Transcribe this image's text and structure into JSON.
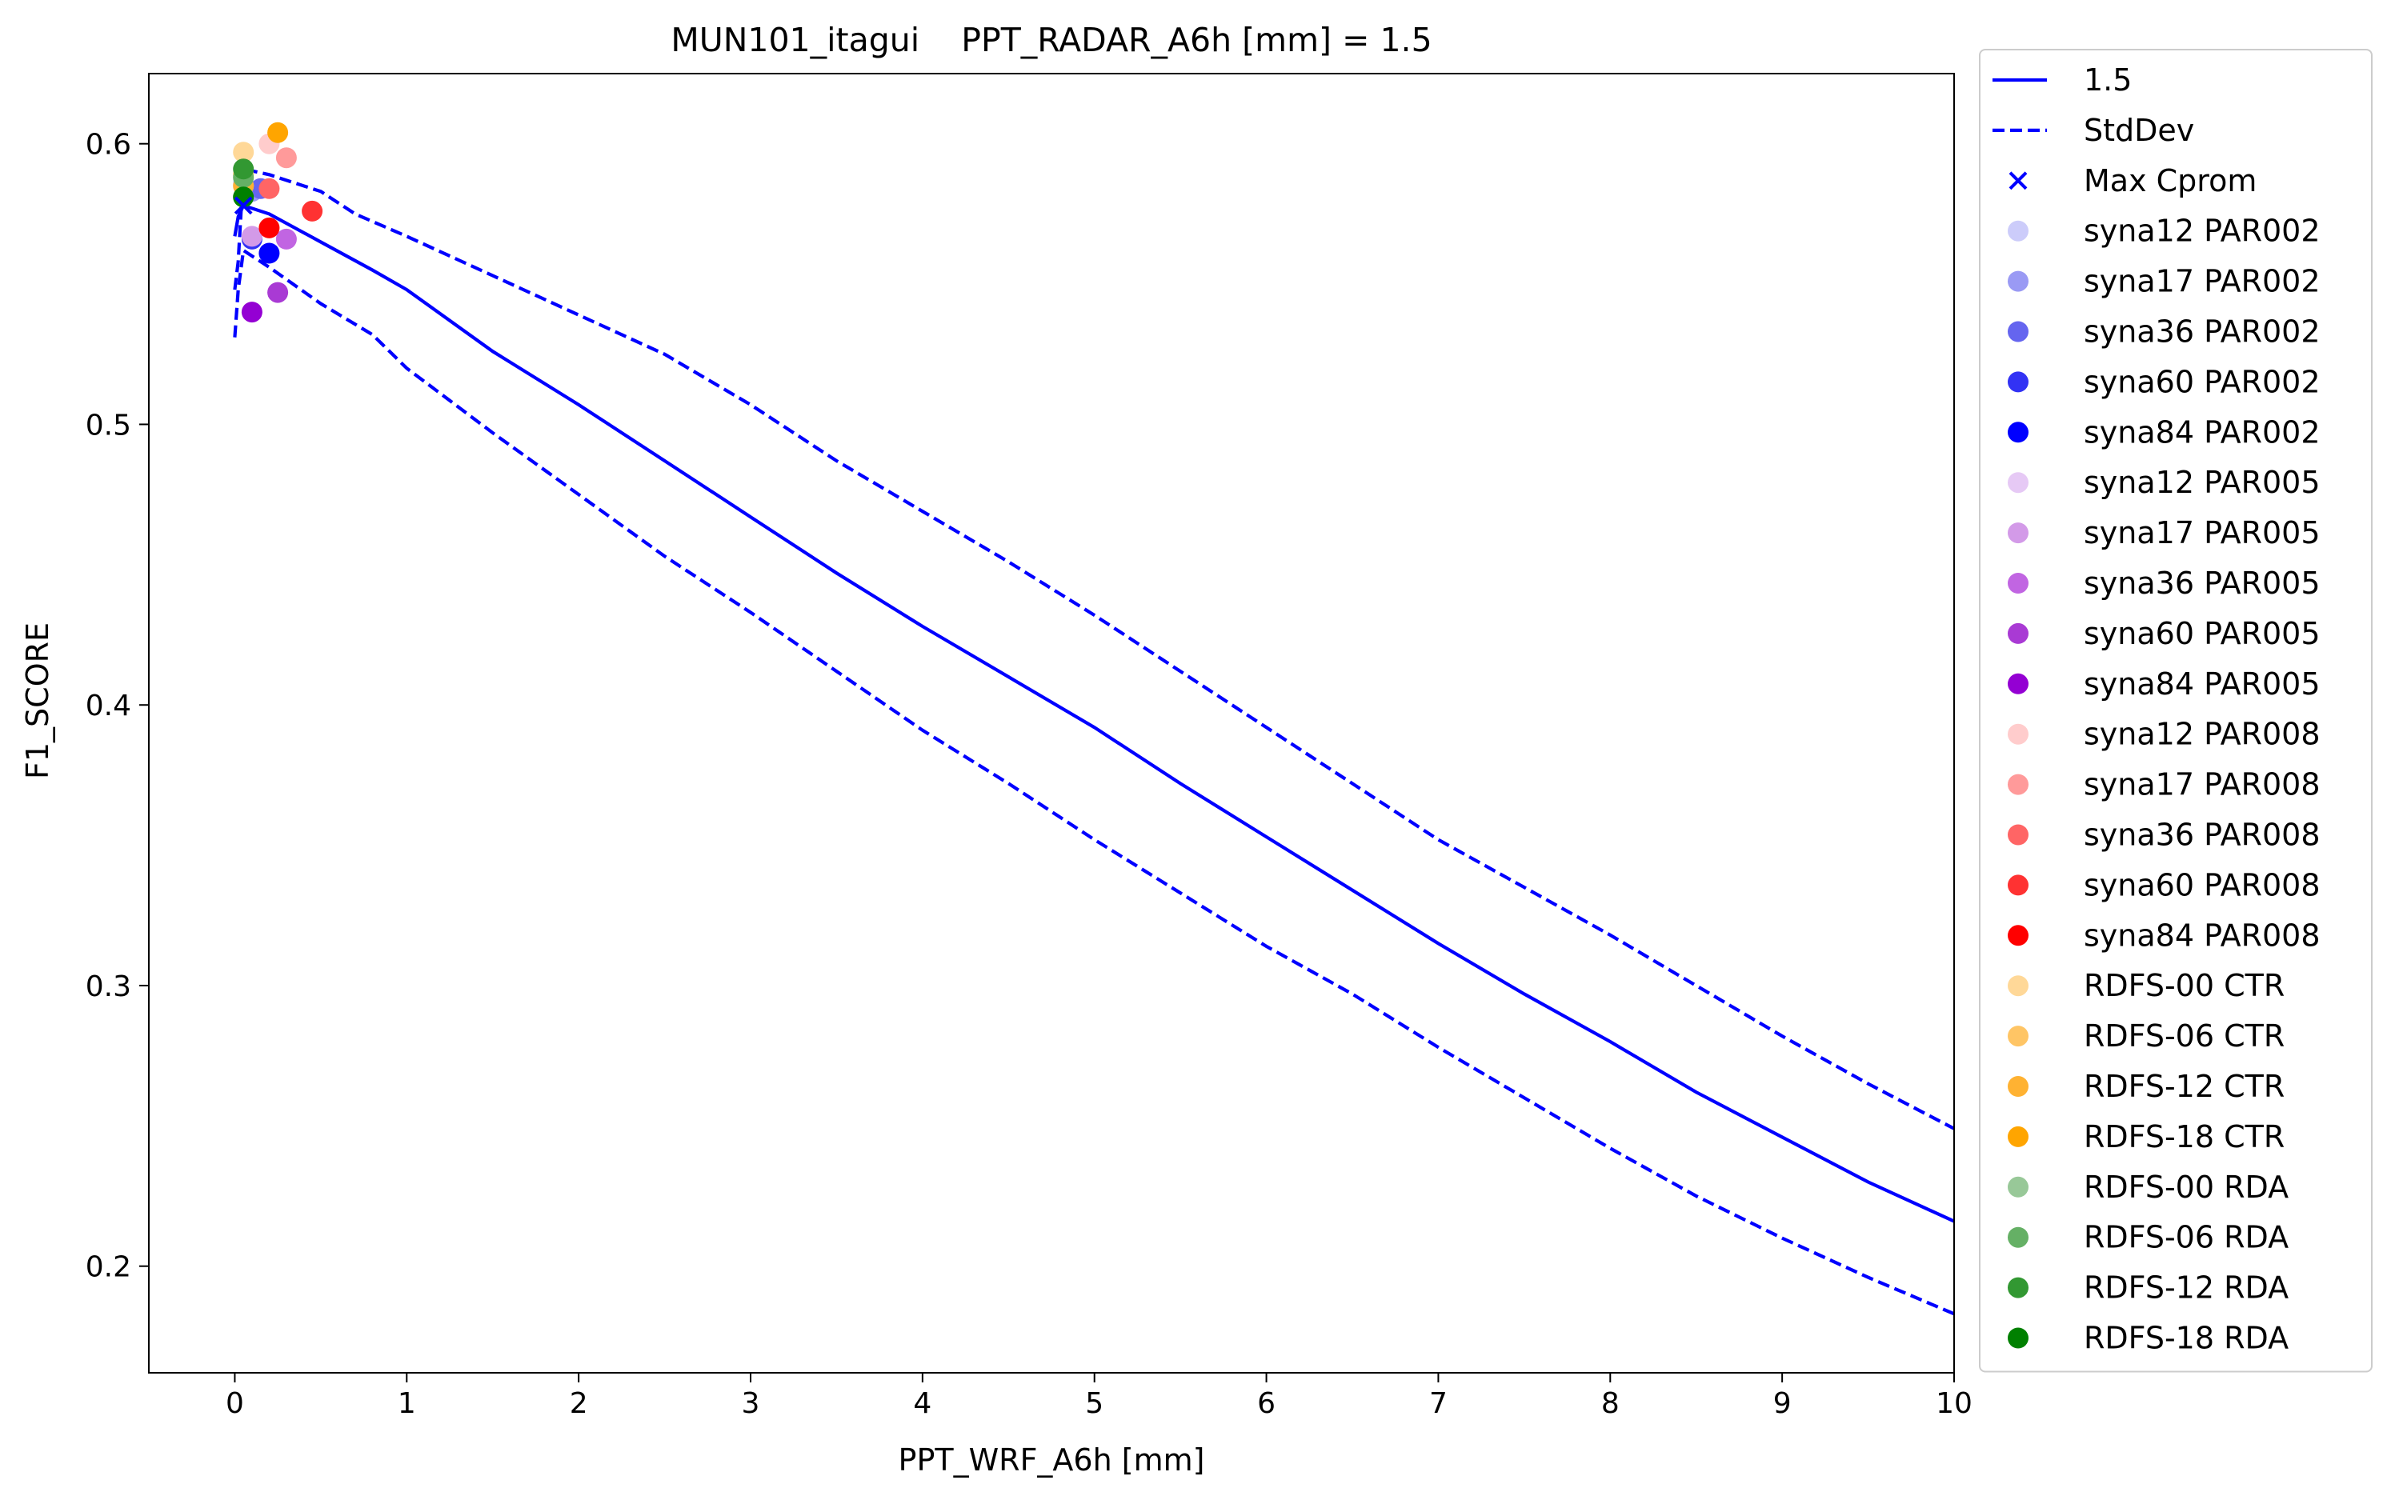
{
  "chart_data": {
    "type": "line",
    "title": "MUN101_itagui    PPT_RADAR_A6h [mm] = 1.5",
    "xlabel": "PPT_WRF_A6h [mm]",
    "ylabel": "F1_SCORE",
    "xlim": [
      -0.5,
      10
    ],
    "ylim": [
      0.162,
      0.625
    ],
    "xticks": [
      "0",
      "1",
      "2",
      "3",
      "4",
      "5",
      "6",
      "7",
      "8",
      "9",
      "10"
    ],
    "yticks": [
      "0.2",
      "0.3",
      "0.4",
      "0.5",
      "0.6"
    ],
    "grid": false,
    "legend_position": "outside right",
    "series": [
      {
        "name": "1.5",
        "style": "solid",
        "color": "#0000ff",
        "points": [
          [
            0.0,
            0.567
          ],
          [
            0.02,
            0.574
          ],
          [
            0.05,
            0.578
          ],
          [
            0.2,
            0.575
          ],
          [
            0.5,
            0.565
          ],
          [
            0.8,
            0.555
          ],
          [
            1.0,
            0.548
          ],
          [
            1.5,
            0.526
          ],
          [
            2.0,
            0.507
          ],
          [
            2.5,
            0.487
          ],
          [
            3.0,
            0.467
          ],
          [
            3.5,
            0.447
          ],
          [
            4.0,
            0.428
          ],
          [
            4.5,
            0.41
          ],
          [
            5.0,
            0.392
          ],
          [
            5.5,
            0.372
          ],
          [
            6.0,
            0.353
          ],
          [
            6.5,
            0.334
          ],
          [
            7.0,
            0.315
          ],
          [
            7.5,
            0.297
          ],
          [
            8.0,
            0.28
          ],
          [
            8.5,
            0.262
          ],
          [
            9.0,
            0.246
          ],
          [
            9.5,
            0.23
          ],
          [
            10.0,
            0.216
          ]
        ]
      },
      {
        "name": "StdDev",
        "style": "dashed",
        "color": "#0000ff",
        "points": [
          [
            0.0,
            0.548
          ],
          [
            0.02,
            0.558
          ],
          [
            0.05,
            0.591
          ],
          [
            0.2,
            0.589
          ],
          [
            0.5,
            0.583
          ],
          [
            0.7,
            0.575
          ],
          [
            1.0,
            0.567
          ],
          [
            1.5,
            0.553
          ],
          [
            2.0,
            0.539
          ],
          [
            2.5,
            0.525
          ],
          [
            3.0,
            0.507
          ],
          [
            3.5,
            0.487
          ],
          [
            4.0,
            0.469
          ],
          [
            4.5,
            0.451
          ],
          [
            5.0,
            0.432
          ],
          [
            5.5,
            0.412
          ],
          [
            6.0,
            0.392
          ],
          [
            6.5,
            0.372
          ],
          [
            7.0,
            0.352
          ],
          [
            7.5,
            0.335
          ],
          [
            8.0,
            0.318
          ],
          [
            8.5,
            0.3
          ],
          [
            9.0,
            0.282
          ],
          [
            9.5,
            0.265
          ],
          [
            10.0,
            0.249
          ]
        ]
      },
      {
        "name": "",
        "style": "dashed",
        "color": "#0000ff",
        "points": [
          [
            0.0,
            0.531
          ],
          [
            0.02,
            0.548
          ],
          [
            0.05,
            0.562
          ],
          [
            0.2,
            0.556
          ],
          [
            0.5,
            0.543
          ],
          [
            0.8,
            0.532
          ],
          [
            1.0,
            0.52
          ],
          [
            1.5,
            0.497
          ],
          [
            2.0,
            0.475
          ],
          [
            2.5,
            0.453
          ],
          [
            3.0,
            0.433
          ],
          [
            3.5,
            0.412
          ],
          [
            4.0,
            0.391
          ],
          [
            4.5,
            0.372
          ],
          [
            5.0,
            0.352
          ],
          [
            5.5,
            0.333
          ],
          [
            6.0,
            0.314
          ],
          [
            6.5,
            0.297
          ],
          [
            7.0,
            0.278
          ],
          [
            7.5,
            0.26
          ],
          [
            8.0,
            0.242
          ],
          [
            8.5,
            0.225
          ],
          [
            9.0,
            0.21
          ],
          [
            9.5,
            0.196
          ],
          [
            10.0,
            0.183
          ]
        ]
      }
    ],
    "markers": {
      "max_cprom": {
        "name": "Max Cprom",
        "marker": "x",
        "color": "#0000ff",
        "x": 0.05,
        "y": 0.578
      }
    },
    "scatter": [
      {
        "name": "syna12 PAR002",
        "color": "#ccccfa",
        "x": 0.05,
        "y": 0.586
      },
      {
        "name": "syna17 PAR002",
        "color": "#9a9af4",
        "x": 0.1,
        "y": 0.583
      },
      {
        "name": "syna36 PAR002",
        "color": "#6565ef",
        "x": 0.15,
        "y": 0.584
      },
      {
        "name": "syna60 PAR002",
        "color": "#3232f4",
        "x": 0.1,
        "y": 0.566
      },
      {
        "name": "syna84 PAR002",
        "color": "#0000ff",
        "x": 0.2,
        "y": 0.561
      },
      {
        "name": "syna12 PAR005",
        "color": "#e6c9f5",
        "x": 0.05,
        "y": 0.585
      },
      {
        "name": "syna17 PAR005",
        "color": "#d39ae8",
        "x": 0.1,
        "y": 0.567
      },
      {
        "name": "syna36 PAR005",
        "color": "#c165e2",
        "x": 0.3,
        "y": 0.566
      },
      {
        "name": "syna60 PAR005",
        "color": "#a93ad4",
        "x": 0.25,
        "y": 0.547
      },
      {
        "name": "syna84 PAR005",
        "color": "#9400d3",
        "x": 0.1,
        "y": 0.54
      },
      {
        "name": "syna12 PAR008",
        "color": "#ffcccc",
        "x": 0.2,
        "y": 0.6
      },
      {
        "name": "syna17 PAR008",
        "color": "#ff9a9a",
        "x": 0.3,
        "y": 0.595
      },
      {
        "name": "syna36 PAR008",
        "color": "#ff6565",
        "x": 0.2,
        "y": 0.584
      },
      {
        "name": "syna60 PAR008",
        "color": "#ff3232",
        "x": 0.45,
        "y": 0.576
      },
      {
        "name": "syna84 PAR008",
        "color": "#ff0000",
        "x": 0.2,
        "y": 0.57
      },
      {
        "name": "RDFS-00 CTR",
        "color": "#ffd898",
        "x": 0.05,
        "y": 0.597
      },
      {
        "name": "RDFS-06 CTR",
        "color": "#ffc565",
        "x": 0.05,
        "y": 0.589
      },
      {
        "name": "RDFS-12 CTR",
        "color": "#ffb232",
        "x": 0.05,
        "y": 0.585
      },
      {
        "name": "RDFS-18 CTR",
        "color": "#ffa500",
        "x": 0.25,
        "y": 0.604
      },
      {
        "name": "RDFS-00 RDA",
        "color": "#98c898",
        "x": 0.05,
        "y": 0.581
      },
      {
        "name": "RDFS-06 RDA",
        "color": "#65b065",
        "x": 0.05,
        "y": 0.588
      },
      {
        "name": "RDFS-12 RDA",
        "color": "#329832",
        "x": 0.05,
        "y": 0.591
      },
      {
        "name": "RDFS-18 RDA",
        "color": "#008000",
        "x": 0.05,
        "y": 0.581
      }
    ]
  }
}
